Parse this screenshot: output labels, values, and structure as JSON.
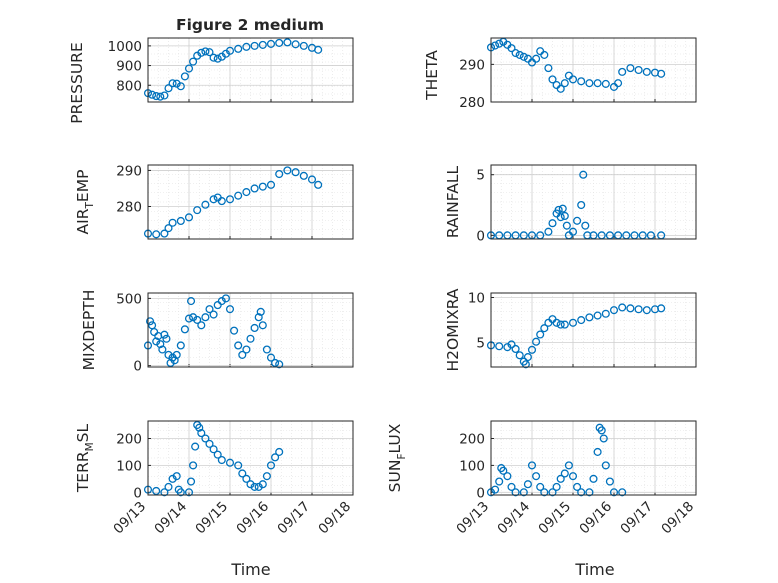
{
  "figure": {
    "title": "Figure 2 medium",
    "xlabel": "Time"
  },
  "chart_data": [
    {
      "type": "scatter",
      "marker": "open-circle",
      "color": "#0072BD",
      "grid": true,
      "ylabel": "PRESSURE",
      "ylim": [
        715,
        1040
      ],
      "yticks": [
        800,
        900,
        1000
      ],
      "x": [
        "09/13",
        "09/13.25",
        "09/13.5",
        "09/13.75",
        "09/14",
        "09/14.25",
        "09/14.5",
        "09/14.75",
        "09/15",
        "09/15.25",
        "09/15.5",
        "09/15.75",
        "09/16",
        "09/16.25",
        "09/16.5",
        "09/16.75",
        "09/17"
      ],
      "points": [
        [
          0,
          760
        ],
        [
          0.1,
          752
        ],
        [
          0.2,
          745
        ],
        [
          0.3,
          742
        ],
        [
          0.4,
          748
        ],
        [
          0.5,
          785
        ],
        [
          0.6,
          810
        ],
        [
          0.7,
          808
        ],
        [
          0.8,
          795
        ],
        [
          0.9,
          845
        ],
        [
          1.0,
          885
        ],
        [
          1.1,
          920
        ],
        [
          1.2,
          950
        ],
        [
          1.3,
          965
        ],
        [
          1.4,
          972
        ],
        [
          1.5,
          968
        ],
        [
          1.6,
          940
        ],
        [
          1.7,
          935
        ],
        [
          1.8,
          945
        ],
        [
          1.9,
          960
        ],
        [
          2.0,
          975
        ],
        [
          2.2,
          985
        ],
        [
          2.4,
          995
        ],
        [
          2.6,
          1000
        ],
        [
          2.8,
          1005
        ],
        [
          3.0,
          1010
        ],
        [
          3.2,
          1015
        ],
        [
          3.4,
          1018
        ],
        [
          3.6,
          1008
        ],
        [
          3.8,
          1000
        ],
        [
          4.0,
          990
        ],
        [
          4.15,
          980
        ]
      ]
    },
    {
      "type": "scatter",
      "marker": "open-circle",
      "color": "#0072BD",
      "grid": true,
      "ylabel": "THETA",
      "ylim": [
        280,
        297
      ],
      "yticks": [
        280,
        290
      ],
      "points": [
        [
          0,
          294.5
        ],
        [
          0.1,
          295
        ],
        [
          0.2,
          295.5
        ],
        [
          0.3,
          296
        ],
        [
          0.4,
          295.2
        ],
        [
          0.5,
          294.3
        ],
        [
          0.6,
          293
        ],
        [
          0.7,
          292.5
        ],
        [
          0.8,
          292
        ],
        [
          0.9,
          291.5
        ],
        [
          1.0,
          290.5
        ],
        [
          1.1,
          291.5
        ],
        [
          1.2,
          293.5
        ],
        [
          1.3,
          292.5
        ],
        [
          1.4,
          289
        ],
        [
          1.5,
          286
        ],
        [
          1.6,
          284.5
        ],
        [
          1.7,
          283.5
        ],
        [
          1.8,
          285
        ],
        [
          1.9,
          287
        ],
        [
          2.0,
          286
        ],
        [
          2.2,
          285.5
        ],
        [
          2.4,
          285
        ],
        [
          2.6,
          285
        ],
        [
          2.8,
          284.8
        ],
        [
          3.0,
          284
        ],
        [
          3.1,
          285
        ],
        [
          3.2,
          288
        ],
        [
          3.4,
          289
        ],
        [
          3.6,
          288.5
        ],
        [
          3.8,
          288
        ],
        [
          4.0,
          287.8
        ],
        [
          4.15,
          287.5
        ]
      ]
    },
    {
      "type": "scatter",
      "marker": "open-circle",
      "color": "#0072BD",
      "grid": true,
      "ylabel": "AIR_TEMP",
      "ylabel_base": "AIR",
      "ylabel_sub": "T",
      "ylabel_rest": "EMP",
      "ylim": [
        271,
        291.5
      ],
      "yticks": [
        280,
        290
      ],
      "points": [
        [
          0,
          272.5
        ],
        [
          0.2,
          272.3
        ],
        [
          0.4,
          272.5
        ],
        [
          0.5,
          274
        ],
        [
          0.6,
          275.5
        ],
        [
          0.8,
          276
        ],
        [
          1.0,
          277
        ],
        [
          1.2,
          279
        ],
        [
          1.4,
          280.5
        ],
        [
          1.6,
          282
        ],
        [
          1.7,
          282.5
        ],
        [
          1.8,
          281.5
        ],
        [
          2.0,
          282
        ],
        [
          2.2,
          283
        ],
        [
          2.4,
          284
        ],
        [
          2.6,
          285
        ],
        [
          2.8,
          285.5
        ],
        [
          3.0,
          286
        ],
        [
          3.2,
          289
        ],
        [
          3.4,
          290
        ],
        [
          3.6,
          289.5
        ],
        [
          3.8,
          288.5
        ],
        [
          4.0,
          287.5
        ],
        [
          4.15,
          286
        ]
      ]
    },
    {
      "type": "scatter",
      "marker": "open-circle",
      "color": "#0072BD",
      "grid": true,
      "ylabel": "RAINFALL",
      "ylim": [
        -0.3,
        5.8
      ],
      "yticks": [
        0,
        5
      ],
      "points": [
        [
          0,
          0
        ],
        [
          0.2,
          0
        ],
        [
          0.4,
          0
        ],
        [
          0.6,
          0
        ],
        [
          0.8,
          0
        ],
        [
          1.0,
          0
        ],
        [
          1.2,
          0
        ],
        [
          1.4,
          0.3
        ],
        [
          1.5,
          1
        ],
        [
          1.6,
          1.8
        ],
        [
          1.65,
          2.1
        ],
        [
          1.7,
          1.5
        ],
        [
          1.75,
          2.2
        ],
        [
          1.8,
          1.6
        ],
        [
          1.85,
          0.8
        ],
        [
          1.9,
          0
        ],
        [
          2.0,
          0.3
        ],
        [
          2.1,
          1.2
        ],
        [
          2.2,
          2.5
        ],
        [
          2.25,
          5.0
        ],
        [
          2.3,
          0.8
        ],
        [
          2.35,
          0
        ],
        [
          2.5,
          0
        ],
        [
          2.7,
          0
        ],
        [
          2.9,
          0
        ],
        [
          3.1,
          0
        ],
        [
          3.3,
          0
        ],
        [
          3.5,
          0
        ],
        [
          3.7,
          0
        ],
        [
          3.9,
          0
        ],
        [
          4.15,
          0
        ]
      ]
    },
    {
      "type": "scatter",
      "marker": "open-circle",
      "color": "#0072BD",
      "grid": true,
      "ylabel": "MIXDEPTH",
      "ylim": [
        -10,
        540
      ],
      "yticks": [
        0,
        500
      ],
      "points": [
        [
          0,
          150
        ],
        [
          0.05,
          330
        ],
        [
          0.1,
          300
        ],
        [
          0.15,
          250
        ],
        [
          0.2,
          180
        ],
        [
          0.25,
          220
        ],
        [
          0.3,
          160
        ],
        [
          0.35,
          120
        ],
        [
          0.4,
          230
        ],
        [
          0.45,
          200
        ],
        [
          0.5,
          80
        ],
        [
          0.55,
          20
        ],
        [
          0.6,
          60
        ],
        [
          0.65,
          40
        ],
        [
          0.7,
          80
        ],
        [
          0.8,
          150
        ],
        [
          0.9,
          270
        ],
        [
          1.0,
          350
        ],
        [
          1.05,
          480
        ],
        [
          1.1,
          360
        ],
        [
          1.2,
          340
        ],
        [
          1.3,
          300
        ],
        [
          1.4,
          360
        ],
        [
          1.5,
          420
        ],
        [
          1.6,
          380
        ],
        [
          1.7,
          450
        ],
        [
          1.8,
          480
        ],
        [
          1.9,
          500
        ],
        [
          2.0,
          420
        ],
        [
          2.1,
          260
        ],
        [
          2.2,
          150
        ],
        [
          2.3,
          80
        ],
        [
          2.4,
          120
        ],
        [
          2.5,
          200
        ],
        [
          2.6,
          280
        ],
        [
          2.7,
          360
        ],
        [
          2.75,
          400
        ],
        [
          2.8,
          300
        ],
        [
          2.9,
          120
        ],
        [
          3.0,
          60
        ],
        [
          3.1,
          20
        ],
        [
          3.2,
          10
        ]
      ]
    },
    {
      "type": "scatter",
      "marker": "open-circle",
      "color": "#0072BD",
      "grid": true,
      "ylabel": "H2OMIXRA",
      "ylim": [
        2.3,
        10.5
      ],
      "yticks": [
        5,
        10
      ],
      "points": [
        [
          0,
          4.7
        ],
        [
          0.2,
          4.6
        ],
        [
          0.4,
          4.5
        ],
        [
          0.5,
          4.8
        ],
        [
          0.6,
          4.3
        ],
        [
          0.7,
          3.6
        ],
        [
          0.8,
          2.9
        ],
        [
          0.85,
          2.6
        ],
        [
          0.9,
          3.4
        ],
        [
          1.0,
          4.2
        ],
        [
          1.1,
          5.1
        ],
        [
          1.2,
          5.9
        ],
        [
          1.3,
          6.6
        ],
        [
          1.4,
          7.2
        ],
        [
          1.5,
          7.6
        ],
        [
          1.6,
          7.2
        ],
        [
          1.7,
          7.0
        ],
        [
          1.8,
          7.0
        ],
        [
          2.0,
          7.2
        ],
        [
          2.2,
          7.5
        ],
        [
          2.4,
          7.8
        ],
        [
          2.6,
          8.0
        ],
        [
          2.8,
          8.2
        ],
        [
          3.0,
          8.6
        ],
        [
          3.2,
          8.9
        ],
        [
          3.4,
          8.8
        ],
        [
          3.6,
          8.7
        ],
        [
          3.8,
          8.6
        ],
        [
          4.0,
          8.7
        ],
        [
          4.15,
          8.8
        ]
      ]
    },
    {
      "type": "scatter",
      "marker": "open-circle",
      "color": "#0072BD",
      "grid": true,
      "ylabel": "TERR_MSL",
      "ylabel_base": "TERR",
      "ylabel_sub": "M",
      "ylabel_rest": "SL",
      "ylim": [
        -10,
        265
      ],
      "yticks": [
        0,
        100,
        200
      ],
      "points": [
        [
          0,
          10
        ],
        [
          0.2,
          5
        ],
        [
          0.4,
          0
        ],
        [
          0.5,
          20
        ],
        [
          0.6,
          50
        ],
        [
          0.7,
          60
        ],
        [
          0.75,
          10
        ],
        [
          0.8,
          0
        ],
        [
          1.0,
          0
        ],
        [
          1.05,
          40
        ],
        [
          1.1,
          100
        ],
        [
          1.15,
          170
        ],
        [
          1.2,
          250
        ],
        [
          1.25,
          240
        ],
        [
          1.3,
          220
        ],
        [
          1.4,
          200
        ],
        [
          1.5,
          180
        ],
        [
          1.6,
          160
        ],
        [
          1.7,
          140
        ],
        [
          1.8,
          120
        ],
        [
          2.0,
          110
        ],
        [
          2.2,
          100
        ],
        [
          2.3,
          70
        ],
        [
          2.4,
          50
        ],
        [
          2.5,
          30
        ],
        [
          2.6,
          20
        ],
        [
          2.7,
          20
        ],
        [
          2.8,
          30
        ],
        [
          2.9,
          60
        ],
        [
          3.0,
          100
        ],
        [
          3.1,
          130
        ],
        [
          3.2,
          150
        ]
      ]
    },
    {
      "type": "scatter",
      "marker": "open-circle",
      "color": "#0072BD",
      "grid": true,
      "ylabel": "SUN_FLUX",
      "ylabel_base": "SUN",
      "ylabel_sub": "F",
      "ylabel_rest": "LUX",
      "ylim": [
        -10,
        265
      ],
      "yticks": [
        0,
        100,
        200
      ],
      "points": [
        [
          0,
          0
        ],
        [
          0.1,
          10
        ],
        [
          0.2,
          40
        ],
        [
          0.25,
          90
        ],
        [
          0.3,
          80
        ],
        [
          0.4,
          60
        ],
        [
          0.5,
          20
        ],
        [
          0.6,
          0
        ],
        [
          0.8,
          0
        ],
        [
          0.9,
          30
        ],
        [
          1.0,
          100
        ],
        [
          1.1,
          60
        ],
        [
          1.2,
          20
        ],
        [
          1.3,
          0
        ],
        [
          1.5,
          0
        ],
        [
          1.6,
          20
        ],
        [
          1.7,
          50
        ],
        [
          1.8,
          70
        ],
        [
          1.9,
          100
        ],
        [
          2.0,
          60
        ],
        [
          2.1,
          20
        ],
        [
          2.2,
          0
        ],
        [
          2.4,
          0
        ],
        [
          2.5,
          50
        ],
        [
          2.6,
          150
        ],
        [
          2.65,
          240
        ],
        [
          2.7,
          230
        ],
        [
          2.75,
          200
        ],
        [
          2.8,
          100
        ],
        [
          2.9,
          40
        ],
        [
          3.0,
          0
        ],
        [
          3.2,
          0
        ]
      ]
    }
  ],
  "xticks": [
    "09/13",
    "09/14",
    "09/15",
    "09/16",
    "09/17",
    "09/18"
  ]
}
